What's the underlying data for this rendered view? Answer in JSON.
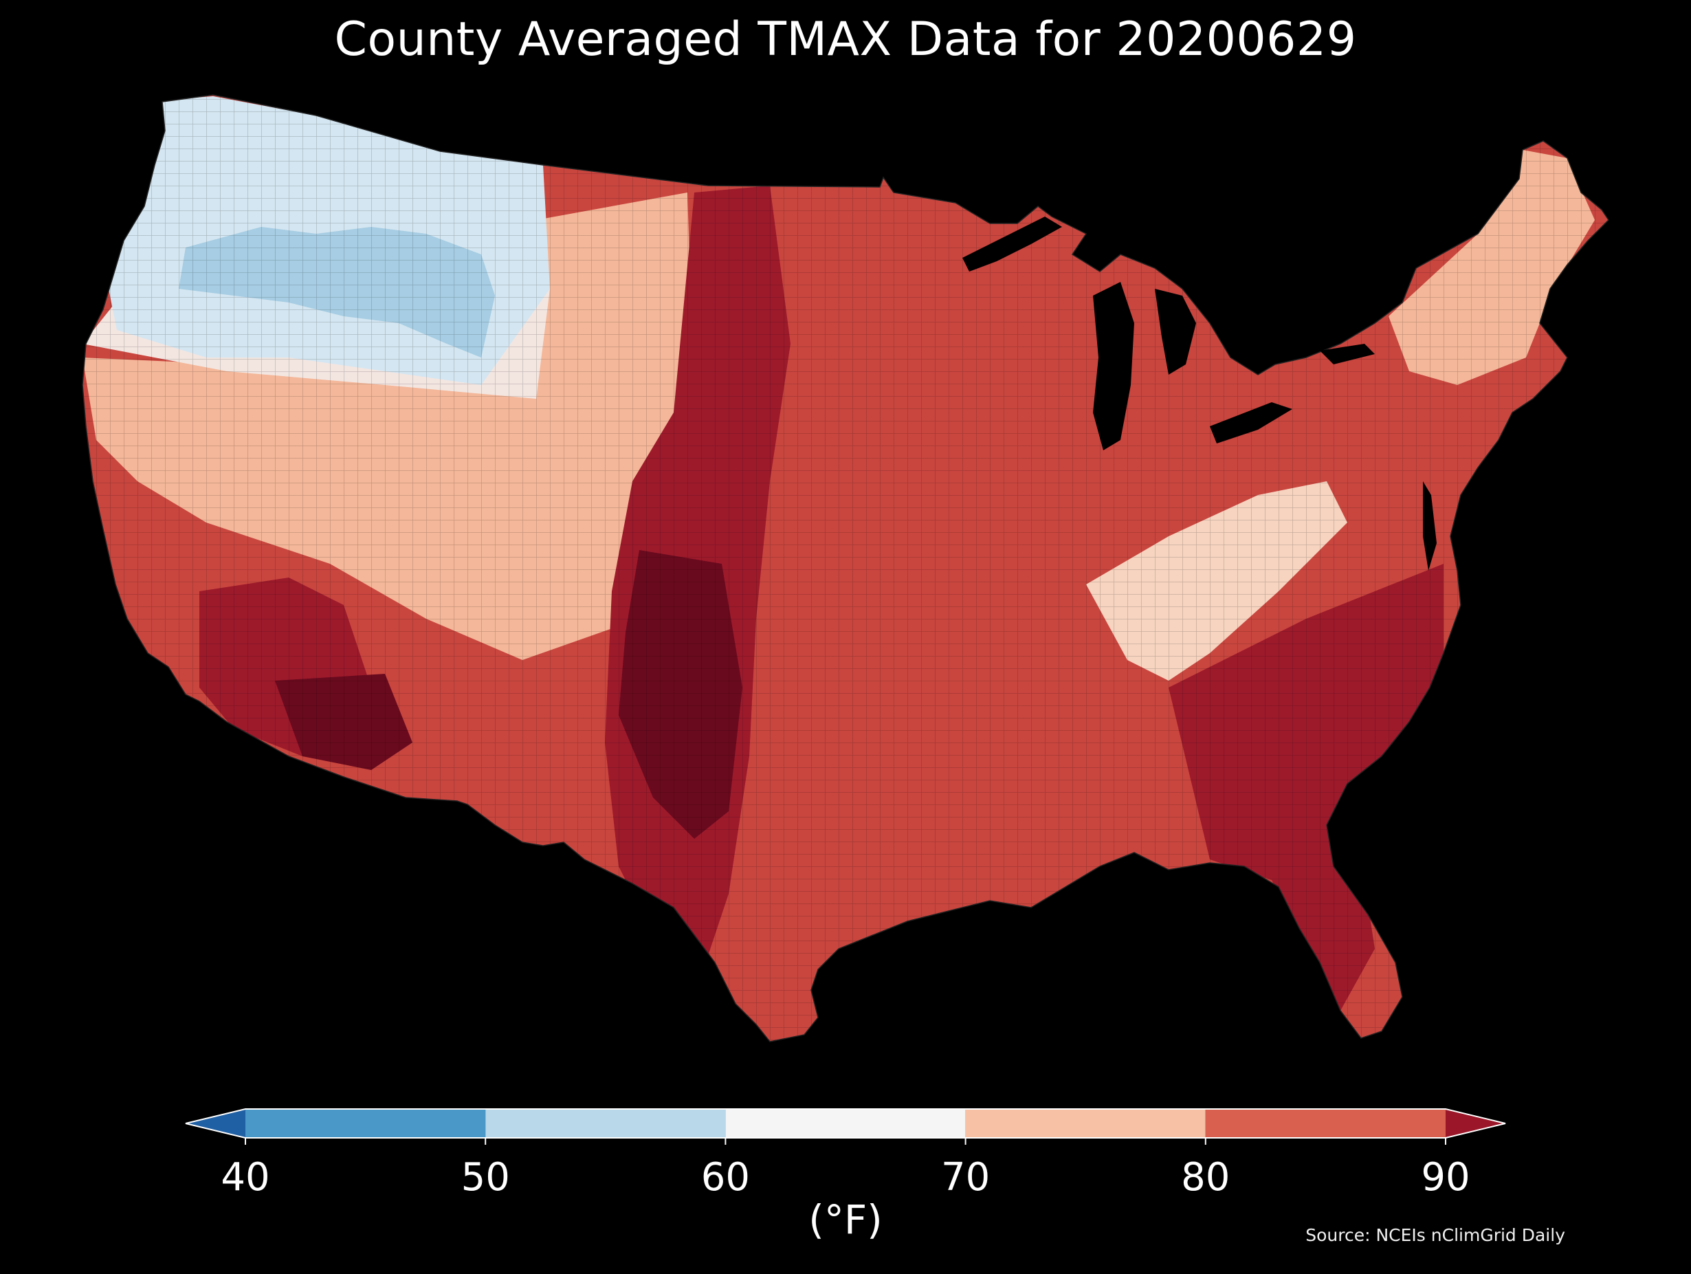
{
  "title": "County Averaged TMAX Data for 20200629",
  "colorbar": {
    "ticks": [
      "40",
      "50",
      "60",
      "70",
      "80",
      "90"
    ],
    "tick_values": [
      40,
      50,
      60,
      70,
      80,
      90
    ],
    "units_label": "(°F)",
    "extend": "both",
    "bins": [
      {
        "from": 30,
        "to": 40,
        "color": "#1f5fa3"
      },
      {
        "from": 40,
        "to": 50,
        "color": "#4a98c8"
      },
      {
        "from": 50,
        "to": 60,
        "color": "#b9d9ea"
      },
      {
        "from": 60,
        "to": 70,
        "color": "#f5f5f5"
      },
      {
        "from": 70,
        "to": 80,
        "color": "#f7c1a5"
      },
      {
        "from": 80,
        "to": 90,
        "color": "#d9604e"
      },
      {
        "from": 90,
        "to": 100,
        "color": "#9a1628"
      }
    ]
  },
  "map": {
    "region": "Contiguous United States counties",
    "land_color": "#c9463f",
    "water_color": "#000000",
    "overlay_colors": {
      "cool_northwest": "#d4e6f1",
      "cold_core": "#a6cde3",
      "mild": "#f3e6e1",
      "warm_light": "#f4b799",
      "appalachian_cool": "#f6d4c0",
      "hot": "#9d1a2b",
      "hottest": "#6a0a1e"
    }
  },
  "source": "Source: NCEIs nClimGrid Daily"
}
